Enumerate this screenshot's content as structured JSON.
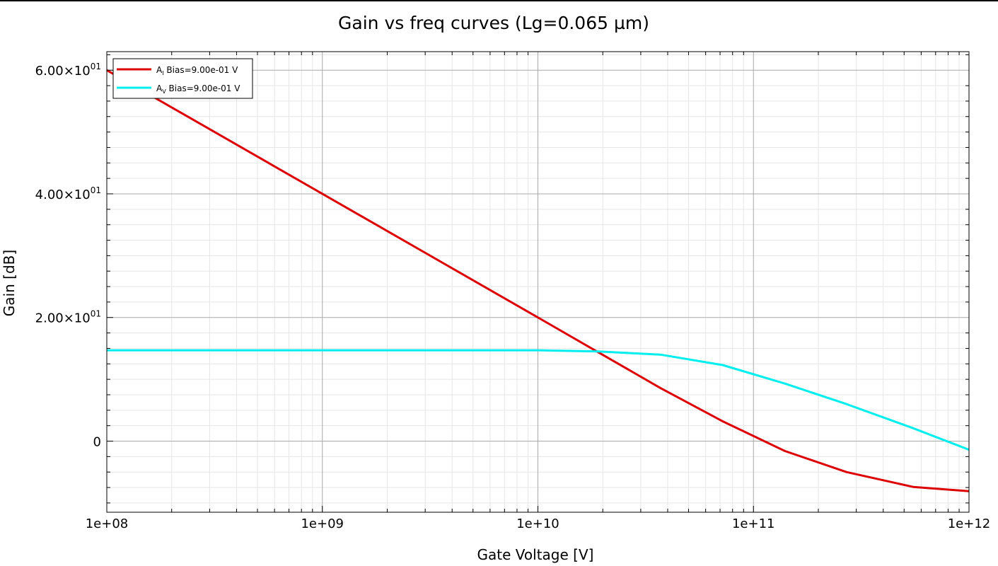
{
  "chart_data": {
    "type": "line",
    "title": "Gain vs freq curves (Lg=0.065 µm)",
    "xlabel": "Gate Voltage [V]",
    "ylabel": "Gain [dB]",
    "x_scale": "log",
    "xlim": [
      100000000,
      1000000000000
    ],
    "ylim": [
      -11.5,
      63
    ],
    "grid": true,
    "legend_position": "top-left",
    "x_ticks": [
      {
        "value": 100000000,
        "label": "1e+08"
      },
      {
        "value": 1000000000,
        "label": "1e+09"
      },
      {
        "value": 10000000000,
        "label": "1e+10"
      },
      {
        "value": 100000000000,
        "label": "1e+11"
      },
      {
        "value": 1000000000000,
        "label": "1e+12"
      }
    ],
    "y_ticks": [
      {
        "value": 0,
        "mantissa": "0",
        "exponent": ""
      },
      {
        "value": 20,
        "mantissa": "2.00×10",
        "exponent": "01"
      },
      {
        "value": 40,
        "mantissa": "4.00×10",
        "exponent": "01"
      },
      {
        "value": 60,
        "mantissa": "6.00×10",
        "exponent": "01"
      }
    ],
    "series": [
      {
        "name_main": "A",
        "name_sub": "I",
        "name_rest": " Bias=9.00e-01 V",
        "color": "#dd0000",
        "x": [
          100000000,
          10000000000,
          19000000000,
          37000000000,
          72000000000,
          140000000000,
          270000000000,
          550000000000,
          1000000000000
        ],
        "y": [
          60,
          20,
          14.4,
          8.6,
          3.2,
          -1.6,
          -5.0,
          -7.4,
          -8.1
        ]
      },
      {
        "name_main": "A",
        "name_sub": "V",
        "name_rest": " Bias=9.00e-01 V",
        "color": "#00eeee",
        "x": [
          100000000,
          10000000000,
          19000000000,
          37000000000,
          72000000000,
          140000000000,
          270000000000,
          550000000000,
          1000000000000
        ],
        "y": [
          14.7,
          14.7,
          14.5,
          14.0,
          12.3,
          9.3,
          6.0,
          2.1,
          -1.4
        ]
      }
    ]
  }
}
